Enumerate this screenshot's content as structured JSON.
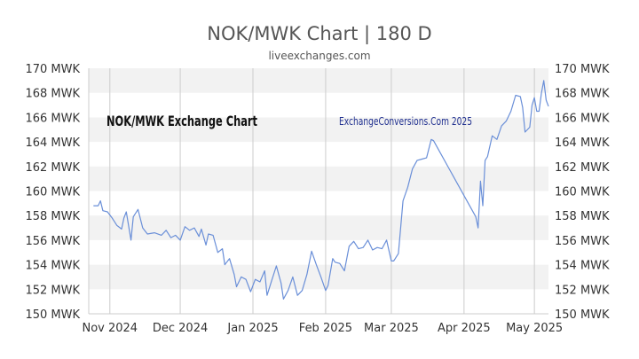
{
  "page": {
    "title": "NOK/MWK Chart | 180 D",
    "subtitle": "liveexchanges.com"
  },
  "chart_data": {
    "type": "line",
    "title": "NOK/MWK Chart | 180 D",
    "subtitle": "liveexchanges.com",
    "overlay_title": "NOK/MWK Exchange Chart",
    "watermark": "ExchangeConversions.Com 2025",
    "xlabel": "",
    "ylabel": "",
    "ylim": [
      150,
      170
    ],
    "y_ticks": [
      150,
      152,
      154,
      156,
      158,
      160,
      162,
      164,
      166,
      168,
      170
    ],
    "y_tick_labels": [
      "150 MWK",
      "152 MWK",
      "154 MWK",
      "156 MWK",
      "158 MWK",
      "160 MWK",
      "162 MWK",
      "164 MWK",
      "166 MWK",
      "168 MWK",
      "170 MWK"
    ],
    "x_ticks": [
      "2024-11-01",
      "2024-12-01",
      "2025-01-01",
      "2025-02-01",
      "2025-03-01",
      "2025-04-01",
      "2025-05-01"
    ],
    "x_tick_labels": [
      "Nov 2024",
      "Dec 2024",
      "Jan 2025",
      "Feb 2025",
      "Mar 2025",
      "Apr 2025",
      "May 2025"
    ],
    "x_range": [
      "2024-10-23",
      "2025-05-07"
    ],
    "grid": true,
    "series_color": "#6a8fd8",
    "band_color": "#f2f2f2",
    "title_color": "#555555",
    "watermark_color": "#1f2f8f",
    "series": [
      {
        "points": [
          [
            "2024-10-25",
            158.8
          ],
          [
            "2024-10-27",
            158.8
          ],
          [
            "2024-10-28",
            159.2
          ],
          [
            "2024-10-29",
            158.4
          ],
          [
            "2024-10-31",
            158.3
          ],
          [
            "2024-11-02",
            157.8
          ],
          [
            "2024-11-04",
            157.2
          ],
          [
            "2024-11-06",
            156.9
          ],
          [
            "2024-11-07",
            157.8
          ],
          [
            "2024-11-08",
            158.3
          ],
          [
            "2024-11-10",
            156.0
          ],
          [
            "2024-11-11",
            157.9
          ],
          [
            "2024-11-13",
            158.5
          ],
          [
            "2024-11-15",
            157.0
          ],
          [
            "2024-11-17",
            156.5
          ],
          [
            "2024-11-20",
            156.6
          ],
          [
            "2024-11-23",
            156.4
          ],
          [
            "2024-11-25",
            156.8
          ],
          [
            "2024-11-27",
            156.2
          ],
          [
            "2024-11-29",
            156.4
          ],
          [
            "2024-12-01",
            156.0
          ],
          [
            "2024-12-03",
            157.1
          ],
          [
            "2024-12-05",
            156.8
          ],
          [
            "2024-12-07",
            157.0
          ],
          [
            "2024-12-09",
            156.3
          ],
          [
            "2024-12-10",
            156.9
          ],
          [
            "2024-12-12",
            155.6
          ],
          [
            "2024-12-13",
            156.5
          ],
          [
            "2024-12-15",
            156.4
          ],
          [
            "2024-12-17",
            155.0
          ],
          [
            "2024-12-19",
            155.3
          ],
          [
            "2024-12-20",
            154.0
          ],
          [
            "2024-12-22",
            154.5
          ],
          [
            "2024-12-24",
            153.2
          ],
          [
            "2024-12-25",
            152.2
          ],
          [
            "2024-12-27",
            153.0
          ],
          [
            "2024-12-29",
            152.8
          ],
          [
            "2024-12-31",
            151.8
          ],
          [
            "2025-01-02",
            152.8
          ],
          [
            "2025-01-04",
            152.6
          ],
          [
            "2025-01-06",
            153.5
          ],
          [
            "2025-01-07",
            151.5
          ],
          [
            "2025-01-09",
            152.7
          ],
          [
            "2025-01-11",
            153.9
          ],
          [
            "2025-01-13",
            152.5
          ],
          [
            "2025-01-14",
            151.2
          ],
          [
            "2025-01-16",
            151.9
          ],
          [
            "2025-01-18",
            153.0
          ],
          [
            "2025-01-20",
            151.5
          ],
          [
            "2025-01-22",
            151.9
          ],
          [
            "2025-01-24",
            153.2
          ],
          [
            "2025-01-26",
            155.1
          ],
          [
            "2025-01-28",
            154.0
          ],
          [
            "2025-01-30",
            153.0
          ],
          [
            "2025-02-01",
            151.9
          ],
          [
            "2025-02-02",
            152.3
          ],
          [
            "2025-02-04",
            154.5
          ],
          [
            "2025-02-05",
            154.2
          ],
          [
            "2025-02-07",
            154.1
          ],
          [
            "2025-02-09",
            153.5
          ],
          [
            "2025-02-11",
            155.5
          ],
          [
            "2025-02-13",
            155.9
          ],
          [
            "2025-02-15",
            155.3
          ],
          [
            "2025-02-17",
            155.4
          ],
          [
            "2025-02-19",
            156.0
          ],
          [
            "2025-02-21",
            155.2
          ],
          [
            "2025-02-23",
            155.4
          ],
          [
            "2025-02-25",
            155.3
          ],
          [
            "2025-02-27",
            156.0
          ],
          [
            "2025-03-01",
            154.3
          ],
          [
            "2025-03-02",
            154.3
          ],
          [
            "2025-03-04",
            154.9
          ],
          [
            "2025-03-06",
            159.2
          ],
          [
            "2025-03-08",
            160.3
          ],
          [
            "2025-03-10",
            161.8
          ],
          [
            "2025-03-12",
            162.5
          ],
          [
            "2025-03-14",
            162.6
          ],
          [
            "2025-03-16",
            162.7
          ],
          [
            "2025-03-18",
            164.2
          ],
          [
            "2025-03-19",
            164.1
          ],
          [
            "2025-04-06",
            157.9
          ],
          [
            "2025-04-07",
            157.0
          ],
          [
            "2025-04-08",
            160.8
          ],
          [
            "2025-04-09",
            158.8
          ],
          [
            "2025-04-10",
            162.5
          ],
          [
            "2025-04-11",
            162.8
          ],
          [
            "2025-04-13",
            164.5
          ],
          [
            "2025-04-15",
            164.2
          ],
          [
            "2025-04-17",
            165.3
          ],
          [
            "2025-04-19",
            165.7
          ],
          [
            "2025-04-21",
            166.5
          ],
          [
            "2025-04-23",
            167.8
          ],
          [
            "2025-04-25",
            167.7
          ],
          [
            "2025-04-26",
            166.8
          ],
          [
            "2025-04-27",
            164.8
          ],
          [
            "2025-04-29",
            165.2
          ],
          [
            "2025-04-30",
            167.0
          ],
          [
            "2025-05-01",
            167.6
          ],
          [
            "2025-05-02",
            166.5
          ],
          [
            "2025-05-03",
            166.5
          ],
          [
            "2025-05-04",
            168.0
          ],
          [
            "2025-05-05",
            169.0
          ],
          [
            "2025-05-06",
            167.4
          ],
          [
            "2025-05-07",
            166.9
          ]
        ]
      }
    ]
  }
}
